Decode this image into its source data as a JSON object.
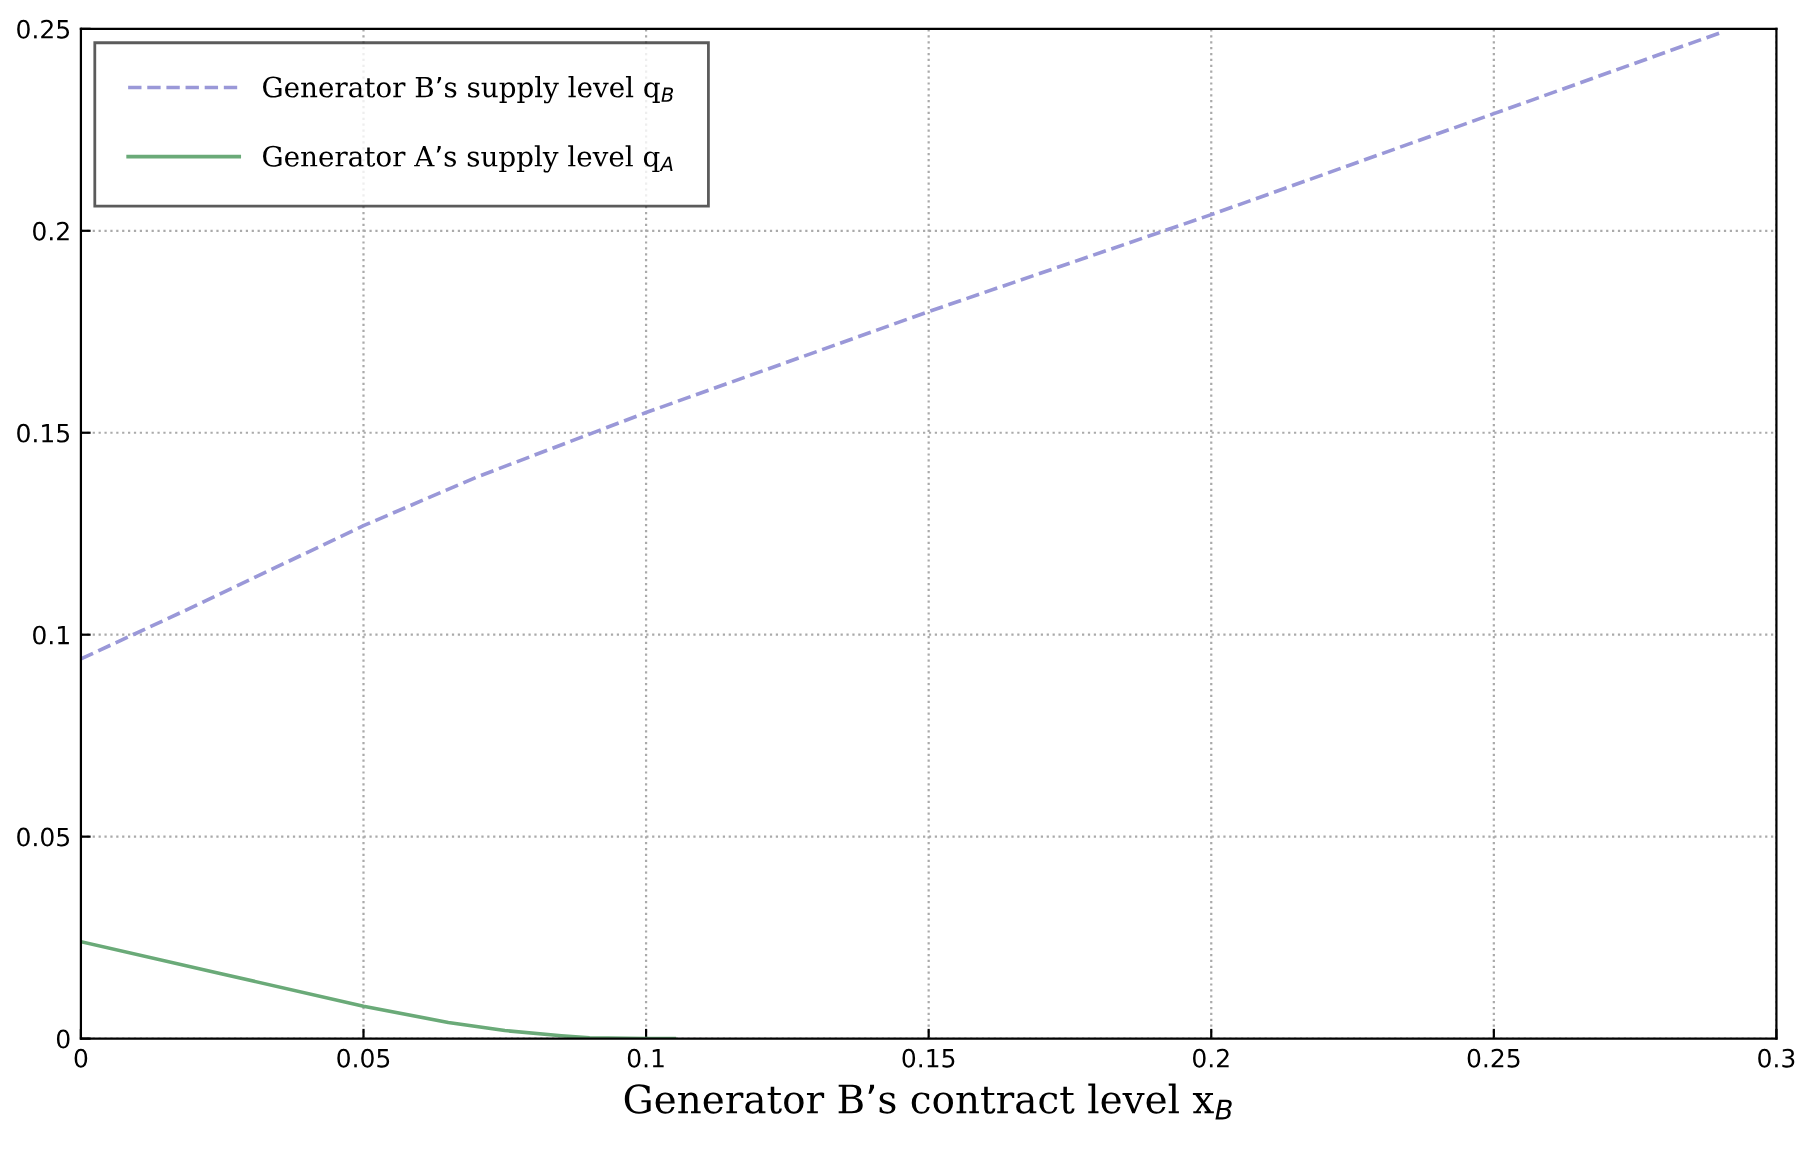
{
  "chart_data": {
    "type": "line",
    "xlabel": "Generator B’s contract level x$_{B}$",
    "xlim": [
      0,
      0.3
    ],
    "xticks": [
      0,
      0.05,
      0.1,
      0.15,
      0.2,
      0.25,
      0.3
    ],
    "ylim": [
      0,
      0.25
    ],
    "yticks": [
      0,
      0.05,
      0.1,
      0.15,
      0.2,
      0.25
    ],
    "grid": true,
    "legend": "top left",
    "series": [
      {
        "name": "Generator B’s supply level q$_{B}$",
        "color": "#9a98d8",
        "line_style": "dashed",
        "x": [
          0,
          0.02,
          0.05,
          0.07,
          0.1,
          0.15,
          0.2,
          0.25,
          0.29
        ],
        "values": [
          0.094,
          0.107,
          0.127,
          0.139,
          0.155,
          0.18,
          0.204,
          0.229,
          0.249
        ]
      },
      {
        "name": "Generator A’s supply level q$_{A}$",
        "color": "#6aaa78",
        "line_style": "solid",
        "x": [
          0,
          0.025,
          0.05,
          0.065,
          0.075,
          0.085,
          0.09,
          0.1,
          0.105
        ],
        "values": [
          0.024,
          0.016,
          0.008,
          0.004,
          0.002,
          0.0007,
          0.0002,
          0,
          0
        ]
      }
    ]
  }
}
